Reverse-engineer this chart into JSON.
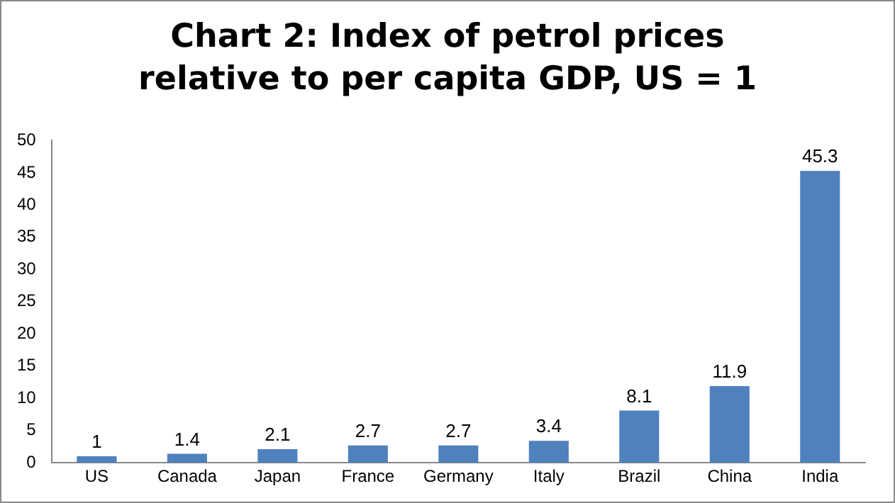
{
  "chart_data": {
    "type": "bar",
    "title": "Chart 2: Index of petrol prices relative to per capita GDP, US = 1",
    "categories": [
      "US",
      "Canada",
      "Japan",
      "France",
      "Germany",
      "Italy",
      "Brazil",
      "China",
      "India"
    ],
    "values": [
      1,
      1.4,
      2.1,
      2.7,
      2.7,
      3.4,
      8.1,
      11.9,
      45.3
    ],
    "color": "#4f81bd",
    "ylim": [
      0,
      50
    ],
    "yticks": [
      0,
      5,
      10,
      15,
      20,
      25,
      30,
      35,
      40,
      45,
      50
    ],
    "grid": false,
    "data_labels": true
  }
}
